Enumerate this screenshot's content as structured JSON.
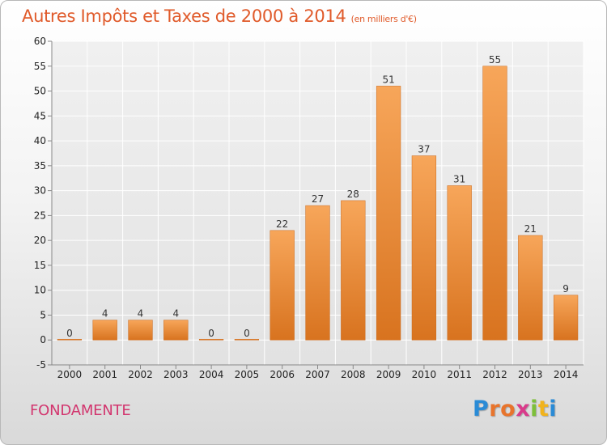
{
  "header": {
    "title": "Autres Impôts et Taxes de 2000 à 2014",
    "unit": "(en milliers d'€)"
  },
  "footer": {
    "commune": "FONDAMENTE",
    "logo_letters": [
      "P",
      "r",
      "o",
      "x",
      "i",
      "t",
      "i"
    ],
    "logo_colors": [
      "#2a8bd6",
      "#e8742c",
      "#e8742c",
      "#d93b8b",
      "#7dbf3a",
      "#f1b31c",
      "#2a8bd6"
    ]
  },
  "colors": {
    "bar_light": "#f7a65a",
    "bar_dark": "#d8731f",
    "grid": "#ffffff",
    "axis": "#888888",
    "title": "#e05a2a",
    "commune": "#d2356e"
  },
  "chart_data": {
    "type": "bar",
    "categories": [
      "2000",
      "2001",
      "2002",
      "2003",
      "2004",
      "2005",
      "2006",
      "2007",
      "2008",
      "2009",
      "2010",
      "2011",
      "2012",
      "2013",
      "2014"
    ],
    "values": [
      0,
      4,
      4,
      4,
      0,
      0,
      22,
      27,
      28,
      51,
      37,
      31,
      55,
      21,
      9
    ],
    "data_labels": [
      "0",
      "4",
      "4",
      "4",
      "0",
      "0",
      "22",
      "27",
      "28",
      "51",
      "37",
      "31",
      "55",
      "21",
      "9"
    ],
    "yticks": [
      -5,
      0,
      5,
      10,
      15,
      20,
      25,
      30,
      35,
      40,
      45,
      50,
      55,
      60
    ],
    "ylim": [
      -5,
      60
    ],
    "grid": true,
    "legend": "none"
  }
}
